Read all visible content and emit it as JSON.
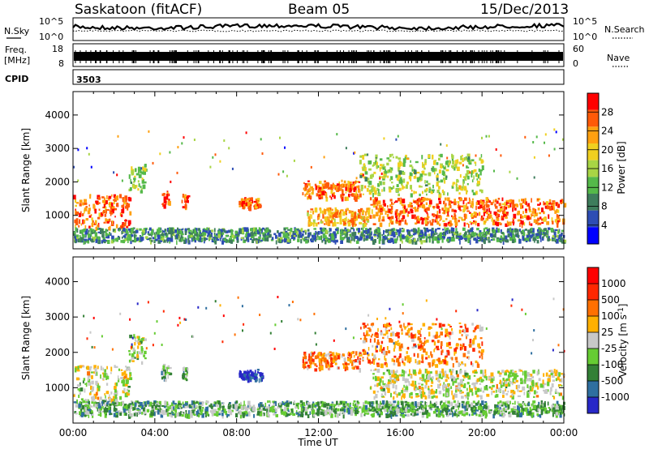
{
  "header": {
    "station": "Saskatoon (fitACF)",
    "beam": "Beam 05",
    "date": "15/Dec/2013"
  },
  "noise_panel": {
    "left_label": "N.Sky",
    "right_label": "N.Search",
    "left_ticks": [
      "10^5",
      "10^0"
    ],
    "right_ticks": [
      "10^5",
      "10^0"
    ]
  },
  "freq_panel": {
    "left_label_1": "Freq.",
    "left_label_2": "[MHz]",
    "left_ticks": [
      "18",
      "8"
    ],
    "right_label": "Nave",
    "right_ticks": [
      "60",
      "0"
    ]
  },
  "cpid_panel": {
    "label": "CPID",
    "value": "3503"
  },
  "chart_data": [
    {
      "type": "heatmap",
      "parameter": "Power",
      "ylabel": "Slant Range [km]",
      "xlabel": "Time UT",
      "x_ticks": [
        "00:00",
        "04:00",
        "08:00",
        "12:00",
        "16:00",
        "20:00",
        "00:00"
      ],
      "y_ticks": [
        "1000",
        "2000",
        "3000",
        "4000"
      ],
      "colorbar_label": "Power [dB]",
      "colorbar_ticks": [
        "28",
        "24",
        "20",
        "16",
        "12",
        "8",
        "4"
      ],
      "colors": [
        "#0000ff",
        "#2d4db4",
        "#3e7d5c",
        "#55b94a",
        "#a8d545",
        "#f0d020",
        "#ffa010",
        "#ff5a08",
        "#ff0000"
      ],
      "regions": [
        {
          "t0": 0.0,
          "t1": 2.8,
          "r0": 600,
          "r1": 1600,
          "level": 0.8
        },
        {
          "t0": 2.7,
          "t1": 3.5,
          "r0": 1700,
          "r1": 2500,
          "level": 0.5
        },
        {
          "t0": 4.3,
          "t1": 4.7,
          "r0": 1200,
          "r1": 1700,
          "level": 0.8
        },
        {
          "t0": 5.3,
          "t1": 5.6,
          "r0": 1200,
          "r1": 1600,
          "level": 0.8
        },
        {
          "t0": 8.1,
          "t1": 9.2,
          "r0": 1200,
          "r1": 1500,
          "level": 0.8
        },
        {
          "t0": 11.2,
          "t1": 14.0,
          "r0": 1500,
          "r1": 2000,
          "level": 0.8
        },
        {
          "t0": 11.4,
          "t1": 14.5,
          "r0": 700,
          "r1": 1200,
          "level": 0.7
        },
        {
          "t0": 14.5,
          "t1": 24.0,
          "r0": 700,
          "r1": 1500,
          "level": 0.8
        },
        {
          "t0": 14.0,
          "t1": 20.0,
          "r0": 1600,
          "r1": 2800,
          "level": 0.5
        },
        {
          "t0": 0.0,
          "t1": 24.0,
          "r0": 200,
          "r1": 600,
          "level": 0.3
        }
      ]
    },
    {
      "type": "heatmap",
      "parameter": "Velocity",
      "ylabel": "Slant Range [km]",
      "xlabel": "Time UT",
      "x_ticks": [
        "00:00",
        "04:00",
        "08:00",
        "12:00",
        "16:00",
        "20:00",
        "00:00"
      ],
      "y_ticks": [
        "1000",
        "2000",
        "3000",
        "4000"
      ],
      "colorbar_label": "Velocity [m s^-1]",
      "colorbar_ticks": [
        "1000",
        "500",
        "100",
        "25",
        "-25",
        "-100",
        "-500",
        "-1000"
      ],
      "colors": [
        "#2828c8",
        "#2f6fa0",
        "#338036",
        "#66cc33",
        "#c8c8c8",
        "#ffb000",
        "#ff7000",
        "#ff2800",
        "#ff0000"
      ],
      "regions": [
        {
          "t0": 0.0,
          "t1": 2.8,
          "r0": 600,
          "r1": 1600,
          "level": 0.5
        },
        {
          "t0": 2.7,
          "t1": 3.5,
          "r0": 1700,
          "r1": 2500,
          "level": 0.45
        },
        {
          "t0": 4.3,
          "t1": 4.7,
          "r0": 1200,
          "r1": 1700,
          "level": 0.35
        },
        {
          "t0": 5.3,
          "t1": 5.6,
          "r0": 1200,
          "r1": 1600,
          "level": 0.35
        },
        {
          "t0": 8.1,
          "t1": 9.2,
          "r0": 1200,
          "r1": 1500,
          "level": 0.05
        },
        {
          "t0": 11.2,
          "t1": 14.0,
          "r0": 1500,
          "r1": 2000,
          "level": 0.7
        },
        {
          "t0": 14.5,
          "t1": 24.0,
          "r0": 700,
          "r1": 1500,
          "level": 0.5
        },
        {
          "t0": 14.0,
          "t1": 20.0,
          "r0": 1600,
          "r1": 2800,
          "level": 0.7
        },
        {
          "t0": 0.0,
          "t1": 24.0,
          "r0": 200,
          "r1": 600,
          "level": 0.35
        }
      ]
    }
  ]
}
